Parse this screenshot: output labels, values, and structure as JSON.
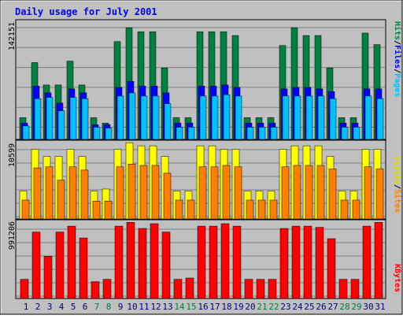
{
  "title": "Daily usage for July 2001",
  "colors": {
    "background": "#c0c0c0",
    "grid": "#808080",
    "title": "#0000ff",
    "weekday_label": "#000080",
    "weekend_label": "#008040",
    "hits": "#008040",
    "files": "#0000ff",
    "pages": "#00c0ff",
    "visits": "#ffff00",
    "sites": "#ff8000",
    "kbytes": "#ff0000"
  },
  "chart_data": [
    {
      "type": "bar",
      "name": "hits-files-pages",
      "categories": [
        "1",
        "2",
        "3",
        "4",
        "5",
        "6",
        "7",
        "8",
        "9",
        "10",
        "11",
        "12",
        "13",
        "14",
        "15",
        "16",
        "17",
        "18",
        "19",
        "20",
        "21",
        "22",
        "23",
        "24",
        "25",
        "26",
        "27",
        "28",
        "29",
        "30",
        "31"
      ],
      "weekend_days": [
        7,
        8,
        14,
        15,
        21,
        22,
        28,
        29
      ],
      "ymax_label": "142151",
      "ylim": [
        0,
        150300
      ],
      "series": [
        {
          "name": "Hits",
          "color": "#008040",
          "values": [
            27700,
            97800,
            69200,
            69200,
            99600,
            69200,
            27700,
            20800,
            124400,
            142151,
            137000,
            137000,
            91000,
            27700,
            27700,
            137000,
            137000,
            137000,
            132200,
            27700,
            27700,
            27700,
            119400,
            142151,
            132200,
            132200,
            91000,
            27700,
            27700,
            135300,
            120600
          ]
        },
        {
          "name": "Files",
          "color": "#0000ff",
          "values": [
            20800,
            67800,
            59200,
            46200,
            64200,
            59200,
            18600,
            18800,
            66100,
            73900,
            67800,
            67800,
            59200,
            20800,
            20800,
            67800,
            67800,
            69200,
            66100,
            20800,
            20800,
            20800,
            64200,
            66100,
            66100,
            64200,
            60900,
            20800,
            20800,
            64200,
            64200
          ]
        },
        {
          "name": "Pages",
          "color": "#00c0ff",
          "values": [
            17100,
            51900,
            53400,
            36400,
            53400,
            51900,
            15500,
            14500,
            55200,
            59200,
            55200,
            55200,
            45600,
            15500,
            15500,
            55200,
            55200,
            56900,
            55200,
            15500,
            15500,
            15500,
            55200,
            55200,
            55200,
            55200,
            51900,
            15500,
            15500,
            55200,
            51900
          ]
        }
      ]
    },
    {
      "type": "bar",
      "name": "visits-sites",
      "categories": [
        "1",
        "2",
        "3",
        "4",
        "5",
        "6",
        "7",
        "8",
        "9",
        "10",
        "11",
        "12",
        "13",
        "14",
        "15",
        "16",
        "17",
        "18",
        "19",
        "20",
        "21",
        "22",
        "23",
        "24",
        "25",
        "26",
        "27",
        "28",
        "29",
        "30",
        "31"
      ],
      "ymax_label": "10599",
      "ylim": [
        0,
        10730
      ],
      "series": [
        {
          "name": "Visits",
          "color": "#ffff00",
          "values": [
            3880,
            9680,
            8680,
            8680,
            9680,
            8680,
            3880,
            4160,
            9680,
            10599,
            10170,
            10170,
            8680,
            3880,
            3880,
            10170,
            10170,
            9680,
            9680,
            3880,
            3880,
            3880,
            9680,
            10170,
            10170,
            10170,
            8680,
            3880,
            3880,
            9680,
            9680
          ]
        },
        {
          "name": "Sites",
          "color": "#ff8000",
          "values": [
            2630,
            7110,
            7250,
            5390,
            7250,
            6800,
            2480,
            2480,
            7250,
            7640,
            7450,
            7450,
            6360,
            2630,
            2630,
            7250,
            7250,
            7450,
            7250,
            2630,
            2630,
            2630,
            7250,
            7450,
            7450,
            7450,
            6950,
            2630,
            2630,
            7250,
            6950
          ]
        }
      ]
    },
    {
      "type": "bar",
      "name": "kbytes",
      "categories": [
        "1",
        "2",
        "3",
        "4",
        "5",
        "6",
        "7",
        "8",
        "9",
        "10",
        "11",
        "12",
        "13",
        "14",
        "15",
        "16",
        "17",
        "18",
        "19",
        "20",
        "21",
        "22",
        "23",
        "24",
        "25",
        "26",
        "27",
        "28",
        "29",
        "30",
        "31"
      ],
      "ymax_label": "991206",
      "ylim": [
        0,
        1004250
      ],
      "series": [
        {
          "name": "KBytes",
          "color": "#ff0000",
          "values": [
            250000,
            865000,
            550000,
            865000,
            942000,
            788000,
            219000,
            250000,
            942000,
            991206,
            912000,
            974000,
            865000,
            250000,
            266000,
            942000,
            942000,
            974000,
            942000,
            250000,
            250000,
            250000,
            912000,
            942000,
            942000,
            926000,
            779000,
            250000,
            250000,
            942000,
            991206
          ]
        }
      ]
    }
  ]
}
